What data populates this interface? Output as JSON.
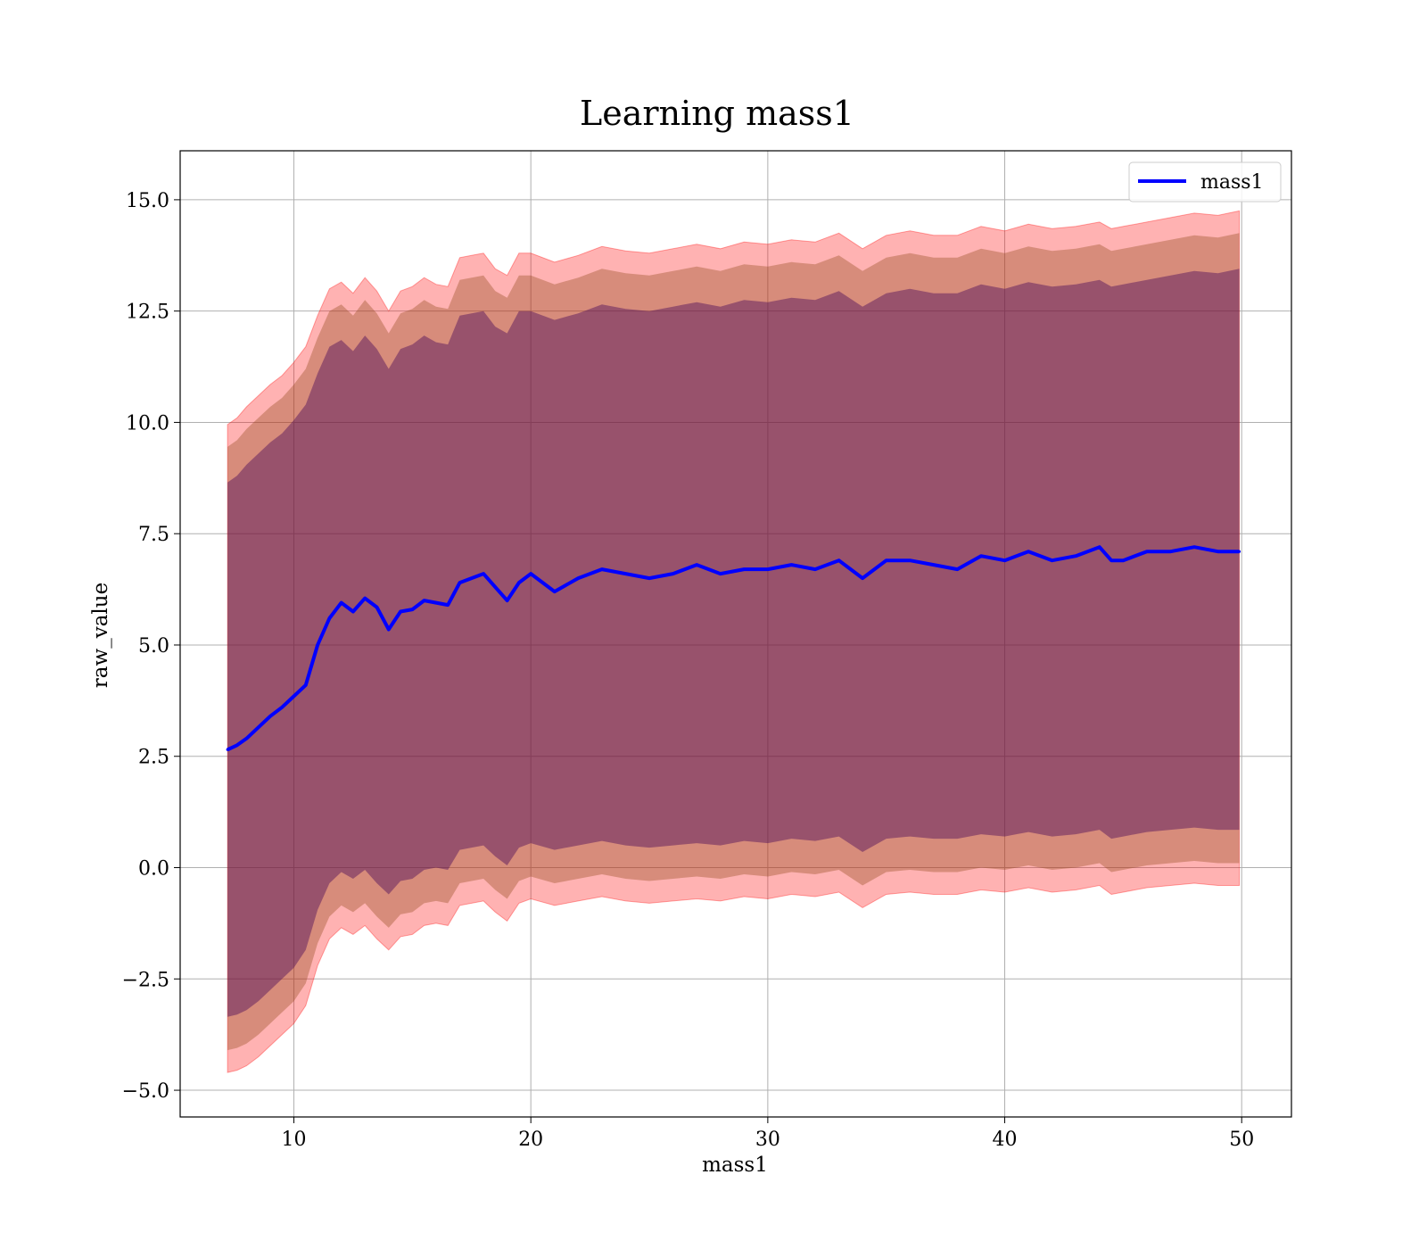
{
  "chart_data": {
    "type": "line",
    "title": "Learning mass1",
    "xlabel": "mass1",
    "ylabel": "raw_value",
    "xlim": [
      5.2,
      52.1
    ],
    "ylim": [
      -5.6,
      16.1
    ],
    "xticks": [
      10,
      20,
      30,
      40,
      50
    ],
    "xtick_labels": [
      "10",
      "20",
      "30",
      "40",
      "50"
    ],
    "yticks": [
      -5.0,
      -2.5,
      0.0,
      2.5,
      5.0,
      7.5,
      10.0,
      12.5,
      15.0
    ],
    "ytick_labels": [
      "−5.0",
      "−2.5",
      "0.0",
      "2.5",
      "5.0",
      "7.5",
      "10.0",
      "12.5",
      "15.0"
    ],
    "grid": true,
    "legend_position": "top-right",
    "colors": {
      "line": "#0000ff",
      "band_outer": "#ff0000",
      "band_middle": "#8b4513",
      "band_inner": "#4b0a5a",
      "grid": "#b0b0b0"
    },
    "series": [
      {
        "name": "mass1",
        "x": [
          7.2,
          7.6,
          8.0,
          8.5,
          9.0,
          9.5,
          10.0,
          10.5,
          11.0,
          11.5,
          12.0,
          12.5,
          13.0,
          13.5,
          14.0,
          14.5,
          15.0,
          15.5,
          16.0,
          16.5,
          17.0,
          17.5,
          18.0,
          18.5,
          19.0,
          19.5,
          20.0,
          21.0,
          22.0,
          23.0,
          24.0,
          25.0,
          26.0,
          27.0,
          28.0,
          29.0,
          30.0,
          31.0,
          32.0,
          33.0,
          34.0,
          35.0,
          36.0,
          37.0,
          38.0,
          39.0,
          40.0,
          41.0,
          42.0,
          43.0,
          44.0,
          44.5,
          45.0,
          46.0,
          47.0,
          48.0,
          49.0,
          49.9
        ],
        "values": [
          2.65,
          2.75,
          2.9,
          3.15,
          3.4,
          3.6,
          3.85,
          4.1,
          5.0,
          5.6,
          5.95,
          5.75,
          6.05,
          5.85,
          5.35,
          5.75,
          5.8,
          6.0,
          5.95,
          5.9,
          6.4,
          6.5,
          6.6,
          6.3,
          6.0,
          6.4,
          6.6,
          6.2,
          6.5,
          6.7,
          6.6,
          6.5,
          6.6,
          6.8,
          6.6,
          6.7,
          6.7,
          6.8,
          6.7,
          6.9,
          6.5,
          6.9,
          6.9,
          6.8,
          6.7,
          7.0,
          6.9,
          7.1,
          6.9,
          7.0,
          7.2,
          6.9,
          6.9,
          7.1,
          7.1,
          7.2,
          7.1,
          7.1
        ],
        "band_outer_upper": [
          9.95,
          10.1,
          10.35,
          10.6,
          10.85,
          11.05,
          11.35,
          11.7,
          12.4,
          13.0,
          13.15,
          12.9,
          13.25,
          12.95,
          12.5,
          12.95,
          13.05,
          13.25,
          13.1,
          13.05,
          13.7,
          13.75,
          13.8,
          13.45,
          13.3,
          13.8,
          13.8,
          13.6,
          13.75,
          13.95,
          13.85,
          13.8,
          13.9,
          14.0,
          13.9,
          14.05,
          14.0,
          14.1,
          14.05,
          14.25,
          13.9,
          14.2,
          14.3,
          14.2,
          14.2,
          14.4,
          14.3,
          14.45,
          14.35,
          14.4,
          14.5,
          14.35,
          14.4,
          14.5,
          14.6,
          14.7,
          14.65,
          14.75
        ],
        "band_outer_lower": [
          -4.6,
          -4.55,
          -4.45,
          -4.25,
          -4.0,
          -3.75,
          -3.5,
          -3.1,
          -2.2,
          -1.6,
          -1.35,
          -1.5,
          -1.3,
          -1.6,
          -1.85,
          -1.55,
          -1.5,
          -1.3,
          -1.25,
          -1.3,
          -0.85,
          -0.8,
          -0.75,
          -1.0,
          -1.2,
          -0.8,
          -0.7,
          -0.85,
          -0.75,
          -0.65,
          -0.75,
          -0.8,
          -0.75,
          -0.7,
          -0.75,
          -0.65,
          -0.7,
          -0.6,
          -0.65,
          -0.55,
          -0.9,
          -0.6,
          -0.55,
          -0.6,
          -0.6,
          -0.5,
          -0.55,
          -0.45,
          -0.55,
          -0.5,
          -0.4,
          -0.6,
          -0.55,
          -0.45,
          -0.4,
          -0.35,
          -0.4,
          -0.4
        ],
        "band_middle_upper": [
          9.45,
          9.6,
          9.85,
          10.1,
          10.35,
          10.55,
          10.85,
          11.2,
          11.9,
          12.5,
          12.65,
          12.4,
          12.75,
          12.45,
          12.0,
          12.45,
          12.55,
          12.75,
          12.6,
          12.55,
          13.2,
          13.25,
          13.3,
          12.95,
          12.8,
          13.3,
          13.3,
          13.1,
          13.25,
          13.45,
          13.35,
          13.3,
          13.4,
          13.5,
          13.4,
          13.55,
          13.5,
          13.6,
          13.55,
          13.75,
          13.4,
          13.7,
          13.8,
          13.7,
          13.7,
          13.9,
          13.8,
          13.95,
          13.85,
          13.9,
          14.0,
          13.85,
          13.9,
          14.0,
          14.1,
          14.2,
          14.15,
          14.25
        ],
        "band_middle_lower": [
          -4.1,
          -4.05,
          -3.95,
          -3.75,
          -3.5,
          -3.25,
          -3.0,
          -2.6,
          -1.7,
          -1.1,
          -0.85,
          -1.0,
          -0.8,
          -1.1,
          -1.35,
          -1.05,
          -1.0,
          -0.8,
          -0.75,
          -0.8,
          -0.35,
          -0.3,
          -0.25,
          -0.5,
          -0.7,
          -0.3,
          -0.2,
          -0.35,
          -0.25,
          -0.15,
          -0.25,
          -0.3,
          -0.25,
          -0.2,
          -0.25,
          -0.15,
          -0.2,
          -0.1,
          -0.15,
          -0.05,
          -0.4,
          -0.1,
          -0.05,
          -0.1,
          -0.1,
          0.0,
          -0.05,
          0.05,
          -0.05,
          0.0,
          0.1,
          -0.1,
          -0.05,
          0.05,
          0.1,
          0.15,
          0.1,
          0.1
        ],
        "band_inner_upper": [
          8.65,
          8.8,
          9.05,
          9.3,
          9.55,
          9.75,
          10.05,
          10.4,
          11.1,
          11.7,
          11.85,
          11.6,
          11.95,
          11.65,
          11.2,
          11.65,
          11.75,
          11.95,
          11.8,
          11.75,
          12.4,
          12.45,
          12.5,
          12.15,
          12.0,
          12.5,
          12.5,
          12.3,
          12.45,
          12.65,
          12.55,
          12.5,
          12.6,
          12.7,
          12.6,
          12.75,
          12.7,
          12.8,
          12.75,
          12.95,
          12.6,
          12.9,
          13.0,
          12.9,
          12.9,
          13.1,
          13.0,
          13.15,
          13.05,
          13.1,
          13.2,
          13.05,
          13.1,
          13.2,
          13.3,
          13.4,
          13.35,
          13.45
        ],
        "band_inner_lower": [
          -3.35,
          -3.3,
          -3.2,
          -3.0,
          -2.75,
          -2.5,
          -2.25,
          -1.85,
          -0.95,
          -0.35,
          -0.1,
          -0.25,
          -0.05,
          -0.35,
          -0.6,
          -0.3,
          -0.25,
          -0.05,
          0.0,
          -0.05,
          0.4,
          0.45,
          0.5,
          0.25,
          0.05,
          0.45,
          0.55,
          0.4,
          0.5,
          0.6,
          0.5,
          0.45,
          0.5,
          0.55,
          0.5,
          0.6,
          0.55,
          0.65,
          0.6,
          0.7,
          0.35,
          0.65,
          0.7,
          0.65,
          0.65,
          0.75,
          0.7,
          0.8,
          0.7,
          0.75,
          0.85,
          0.65,
          0.7,
          0.8,
          0.85,
          0.9,
          0.85,
          0.85
        ]
      }
    ]
  }
}
